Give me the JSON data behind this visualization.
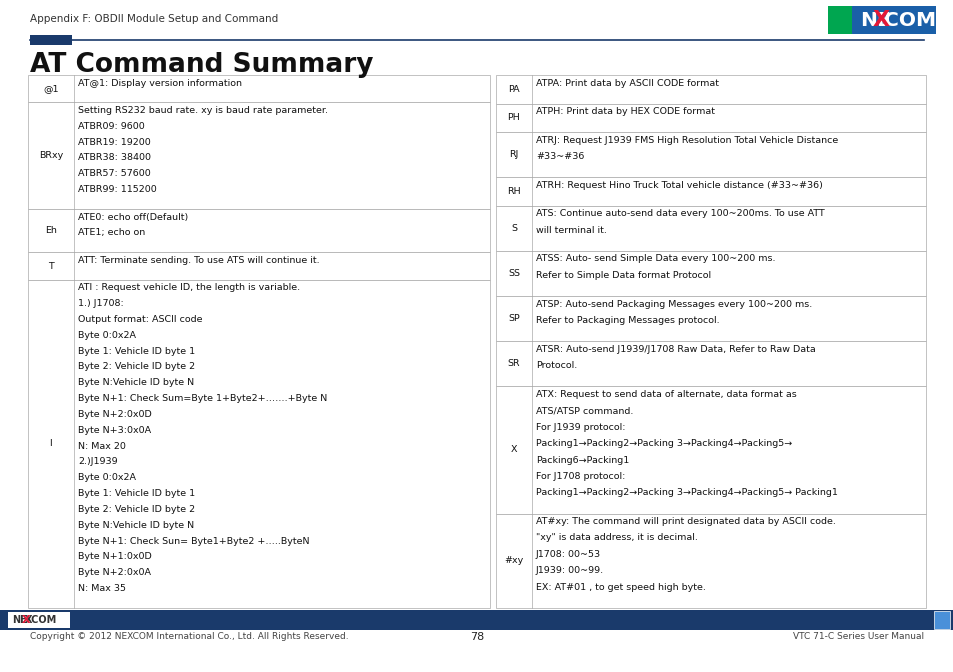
{
  "title": "AT Command Summary",
  "header_text": "Appendix F: OBDII Module Setup and Command",
  "footer_page": "78",
  "footer_left": "Copyright © 2012 NEXCOM International Co., Ltd. All Rights Reserved.",
  "footer_right": "VTC 71-C Series User Manual",
  "bg_color": "#ffffff",
  "header_line_color": "#1a3a6b",
  "header_bar_color": "#1a3a6b",
  "footer_bar_color": "#1a3a6b",
  "table_border_color": "#aaaaaa",
  "logo_green": "#00a650",
  "logo_blue": "#1a5fa8",
  "logo_red": "#e31837",
  "left_table": [
    {
      "cmd": "@1",
      "desc": "AT@1: Display version information"
    },
    {
      "cmd": "BRxy",
      "desc": "Setting RS232 baud rate. xy is baud rate parameter.\nATBR09: 9600\nATBR19: 19200\nATBR38: 38400\nATBR57: 57600\nATBR99: 115200"
    },
    {
      "cmd": "Eh",
      "desc": "ATE0: echo off(Default)\nATE1; echo on"
    },
    {
      "cmd": "T",
      "desc": "ATT: Terminate sending. To use ATS will continue it."
    },
    {
      "cmd": "I",
      "desc": "ATI : Request vehicle ID, the length is variable.\n1.) J1708:\nOutput format: ASCII code\nByte 0:0x2A\nByte 1: Vehicle ID byte 1\nByte 2: Vehicle ID byte 2\nByte N:Vehicle ID byte N\nByte N+1: Check Sum=Byte 1+Byte2+…….+Byte N\nByte N+2:0x0D\nByte N+3:0x0A\nN: Max 20\n2.)J1939\nByte 0:0x2A\nByte 1: Vehicle ID byte 1\nByte 2: Vehicle ID byte 2\nByte N:Vehicle ID byte N\nByte N+1: Check Sun= Byte1+Byte2 +…..ByteN\nByte N+1:0x0D\nByte N+2:0x0A\nN: Max 35"
    }
  ],
  "right_table": [
    {
      "cmd": "PA",
      "desc": "ATPA: Print data by ASCII CODE format"
    },
    {
      "cmd": "PH",
      "desc": "ATPH: Print data by HEX CODE format"
    },
    {
      "cmd": "RJ",
      "desc": "ATRJ: Request J1939 FMS High Resolution Total Vehicle Distance\n#33~#36"
    },
    {
      "cmd": "RH",
      "desc": "ATRH: Request Hino Truck Total vehicle distance (#33~#36)"
    },
    {
      "cmd": "S",
      "desc": "ATS: Continue auto-send data every 100~200ms. To use ATT\nwill terminal it."
    },
    {
      "cmd": "SS",
      "desc": "ATSS: Auto- send Simple Data every 100~200 ms.\nRefer to Simple Data format Protocol"
    },
    {
      "cmd": "SP",
      "desc": "ATSP: Auto-send Packaging Messages every 100~200 ms.\nRefer to Packaging Messages protocol."
    },
    {
      "cmd": "SR",
      "desc": "ATSR: Auto-send J1939/J1708 Raw Data, Refer to Raw Data\nProtocol."
    },
    {
      "cmd": "X",
      "desc": "ATX: Request to send data of alternate, data format as\nATS/ATSP command.\nFor J1939 protocol:\nPacking1→Packing2→Packing 3→Packing4→Packing5→\nPacking6→Packing1\nFor J1708 protocol:\nPacking1→Packing2→Packing 3→Packing4→Packing5→ Packing1"
    },
    {
      "cmd": "#xy",
      "desc": "AT#xy: The command will print designated data by ASCII code.\n\"xy\" is data address, it is decimal.\nJ1708: 00~53\nJ1939: 00~99.\nEX: AT#01 , to get speed high byte."
    }
  ]
}
